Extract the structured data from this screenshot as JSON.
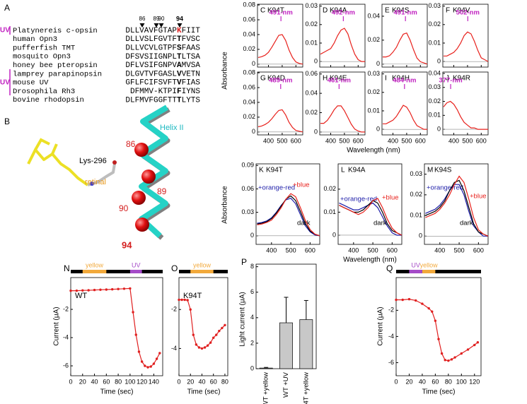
{
  "alignment": {
    "panel": "A",
    "positions": [
      "86",
      "89",
      "90",
      "94"
    ],
    "groups": [
      "UV",
      "UV"
    ],
    "rows": [
      {
        "name": "Platynereis c-opsin",
        "pre": "DLLVAVFGTAP",
        "site": "K",
        "post": "FIIT"
      },
      {
        "name": "human Opn3",
        "pre": "DLLVSLFGVTF",
        "site": "T",
        "post": "FVSC"
      },
      {
        "name": "pufferfish TMT",
        "pre": "DLLVCVLGTPF",
        "site": "S",
        "post": "FAAS"
      },
      {
        "name": "mosquito Opn3",
        "pre": "DFSVSIIGNPL",
        "site": "T",
        "post": "LTSA"
      },
      {
        "name": "honey bee pteropsin",
        "pre": "DFLVSIFGNPV",
        "site": "A",
        "post": "MVSA"
      },
      {
        "name": "lamprey parapinopsin",
        "pre": "DLGVTVFGASL",
        "site": "V",
        "post": "VETN"
      },
      {
        "name": "mouse UV",
        "pre": "GFLFCIFSVFT",
        "site": "V",
        "post": "FIAS"
      },
      {
        "name": "Drosophila Rh3",
        "pre": "DFMMV-KTPI",
        "site": "F",
        "post": "IYNS"
      },
      {
        "name": "bovine rhodopsin",
        "pre": "DLFMVFGGFTT",
        "site": "T",
        "post": "LYTS"
      }
    ]
  },
  "structure": {
    "panel": "B",
    "helix": "Helix II",
    "lysine": "Lys-296",
    "chromophore": "retinal",
    "residues": [
      "86",
      "89",
      "90",
      "94"
    ]
  },
  "chart_data": [
    {
      "type": "line",
      "panel": "C",
      "title": "K94T",
      "ylabel": "Absorbance",
      "x": [
        325,
        350,
        375,
        400,
        425,
        450,
        475,
        500,
        525,
        550,
        575,
        600,
        625,
        650
      ],
      "values": [
        0.009,
        0.01,
        0.012,
        0.016,
        0.023,
        0.031,
        0.039,
        0.04,
        0.032,
        0.019,
        0.009,
        0.003,
        0.001,
        0.0
      ],
      "color": "#e8211c",
      "xlim": [
        320,
        650
      ],
      "xticks": [
        400,
        500,
        600
      ],
      "ylim": [
        -0.004,
        0.081
      ],
      "yticks": [
        0,
        0.02,
        0.04,
        0.06,
        0.08
      ],
      "annotation": {
        "value": 491,
        "label": "491-nm"
      },
      "zero_line": true
    },
    {
      "type": "line",
      "panel": "D",
      "title": "K94A",
      "x": [
        325,
        350,
        375,
        400,
        425,
        450,
        475,
        500,
        525,
        550,
        575,
        600,
        625,
        650
      ],
      "values": [
        0.004,
        0.005,
        0.006,
        0.007,
        0.01,
        0.014,
        0.017,
        0.018,
        0.015,
        0.009,
        0.004,
        0.001,
        0.0,
        0.0
      ],
      "color": "#e8211c",
      "xlim": [
        320,
        650
      ],
      "xticks": [
        400,
        500,
        600
      ],
      "ylim": [
        -0.003,
        0.031
      ],
      "yticks": [
        0,
        0.01,
        0.02,
        0.03
      ],
      "annotation": {
        "value": 492,
        "label": "492-nm"
      },
      "zero_line": true
    },
    {
      "type": "line",
      "panel": "E",
      "title": "K94S",
      "x": [
        325,
        350,
        375,
        400,
        425,
        450,
        475,
        500,
        525,
        550,
        575,
        600,
        625,
        650
      ],
      "values": [
        0.006,
        0.006,
        0.007,
        0.01,
        0.014,
        0.02,
        0.025,
        0.026,
        0.02,
        0.012,
        0.005,
        0.002,
        0.001,
        0.0
      ],
      "color": "#e8211c",
      "xlim": [
        320,
        650
      ],
      "xticks": [
        400,
        500,
        600
      ],
      "ylim": [
        -0.0025,
        0.05
      ],
      "yticks": [
        0,
        0.02,
        0.04
      ],
      "annotation": {
        "value": 491,
        "label": "491-nm"
      },
      "zero_line": true
    },
    {
      "type": "line",
      "panel": "F",
      "title": "K94V",
      "x": [
        325,
        350,
        375,
        400,
        425,
        450,
        475,
        500,
        525,
        550,
        575,
        600,
        625,
        650
      ],
      "values": [
        0.003,
        0.003,
        0.004,
        0.005,
        0.007,
        0.01,
        0.014,
        0.016,
        0.015,
        0.011,
        0.006,
        0.002,
        0.001,
        0.0
      ],
      "color": "#e8211c",
      "xlim": [
        320,
        650
      ],
      "xticks": [
        400,
        500,
        600
      ],
      "ylim": [
        -0.003,
        0.031
      ],
      "yticks": [
        0,
        0.01,
        0.02,
        0.03
      ],
      "annotation": {
        "value": 502,
        "label": "502-nm"
      },
      "zero_line": true
    },
    {
      "type": "line",
      "panel": "G",
      "title": "K94D",
      "x": [
        325,
        350,
        375,
        400,
        425,
        450,
        475,
        500,
        525,
        550,
        575,
        600,
        625,
        650
      ],
      "values": [
        0.007,
        0.008,
        0.01,
        0.013,
        0.018,
        0.024,
        0.029,
        0.03,
        0.023,
        0.013,
        0.006,
        0.002,
        0.001,
        0.0
      ],
      "color": "#e8211c",
      "xlim": [
        320,
        650
      ],
      "xticks": [
        400,
        500,
        600
      ],
      "ylim": [
        -0.004,
        0.081
      ],
      "yticks": [
        0,
        0.02,
        0.04,
        0.06,
        0.08
      ],
      "annotation": {
        "value": 489,
        "label": "489-nm"
      },
      "zero_line": true
    },
    {
      "type": "line",
      "panel": "H",
      "title": "K94E",
      "xlabel": "Wavelength (nm)",
      "x": [
        325,
        350,
        375,
        400,
        425,
        450,
        475,
        500,
        525,
        550,
        575,
        600,
        625,
        650
      ],
      "values": [
        0.009,
        0.009,
        0.012,
        0.017,
        0.023,
        0.027,
        0.027,
        0.022,
        0.015,
        0.008,
        0.003,
        0.001,
        0.0,
        0.0
      ],
      "color": "#e8211c",
      "xlim": [
        320,
        650
      ],
      "xticks": [
        400,
        500,
        600
      ],
      "ylim": [
        -0.003,
        0.062
      ],
      "yticks": [
        0,
        0.02,
        0.04,
        0.06
      ],
      "annotation": {
        "value": 461,
        "label": "461-nm"
      },
      "zero_line": true
    },
    {
      "type": "line",
      "panel": "I",
      "title": "K94H",
      "x": [
        325,
        350,
        375,
        400,
        425,
        450,
        475,
        500,
        525,
        550,
        575,
        600,
        625,
        650
      ],
      "values": [
        0.003,
        0.003,
        0.004,
        0.005,
        0.007,
        0.01,
        0.013,
        0.012,
        0.009,
        0.005,
        0.002,
        0.001,
        0.0,
        0.0
      ],
      "color": "#e8211c",
      "xlim": [
        320,
        650
      ],
      "xticks": [
        400,
        500,
        600
      ],
      "ylim": [
        -0.003,
        0.031
      ],
      "yticks": [
        0,
        0.01,
        0.02,
        0.03
      ],
      "annotation": {
        "value": 484,
        "label": "484-nm"
      },
      "zero_line": true
    },
    {
      "type": "line",
      "panel": "J",
      "title": "K94R",
      "x": [
        325,
        350,
        375,
        400,
        425,
        450,
        475,
        500,
        525,
        550,
        575,
        600,
        625,
        650
      ],
      "values": [
        0.016,
        0.019,
        0.02,
        0.018,
        0.014,
        0.009,
        0.005,
        0.003,
        0.001,
        0.001,
        0.0,
        0.0,
        0.0,
        0.0
      ],
      "color": "#e8211c",
      "xlim": [
        320,
        650
      ],
      "xticks": [
        400,
        500,
        600
      ],
      "ylim": [
        -0.004,
        0.041
      ],
      "yticks": [
        0,
        0.01,
        0.02,
        0.03,
        0.04
      ],
      "annotation": {
        "value": 377,
        "label": "377-nm"
      },
      "zero_line": true
    },
    {
      "type": "line",
      "panel": "K",
      "title": "K94T",
      "ylabel": "Absorbance",
      "x": [
        325,
        350,
        375,
        400,
        425,
        450,
        475,
        500,
        525,
        550,
        575,
        600,
        625,
        650
      ],
      "series": [
        {
          "name": "+orange-red",
          "color": "#1c1ca8",
          "values": [
            0.016,
            0.017,
            0.019,
            0.023,
            0.03,
            0.039,
            0.046,
            0.048,
            0.041,
            0.027,
            0.013,
            0.005,
            0.001,
            0.0
          ]
        },
        {
          "name": "dark",
          "color": "#000000",
          "values": [
            0.015,
            0.016,
            0.018,
            0.022,
            0.029,
            0.038,
            0.047,
            0.051,
            0.045,
            0.031,
            0.016,
            0.006,
            0.002,
            0.0
          ]
        },
        {
          "name": "+blue",
          "color": "#e8211c",
          "values": [
            0.014,
            0.015,
            0.017,
            0.02,
            0.027,
            0.036,
            0.047,
            0.054,
            0.05,
            0.036,
            0.02,
            0.008,
            0.002,
            0.0
          ]
        }
      ],
      "xlim": [
        320,
        650
      ],
      "xticks": [
        400,
        500,
        600
      ],
      "ylim": [
        -0.011,
        0.092
      ],
      "yticks": [
        0,
        0.03,
        0.06,
        0.09
      ],
      "zero_line": true
    },
    {
      "type": "line",
      "panel": "L",
      "title": "K94A",
      "xlabel": "Wavelength (nm)",
      "x": [
        325,
        350,
        375,
        400,
        425,
        450,
        475,
        500,
        525,
        550,
        575,
        600,
        625,
        650
      ],
      "series": [
        {
          "name": "+orange-red",
          "color": "#1c1ca8",
          "values": [
            0.014,
            0.013,
            0.012,
            0.011,
            0.011,
            0.012,
            0.013,
            0.014,
            0.012,
            0.008,
            0.004,
            0.001,
            0.0,
            0.0
          ]
        },
        {
          "name": "dark",
          "color": "#000000",
          "values": [
            0.013,
            0.012,
            0.011,
            0.01,
            0.01,
            0.011,
            0.013,
            0.015,
            0.014,
            0.01,
            0.005,
            0.002,
            0.001,
            0.0
          ]
        },
        {
          "name": "+blue",
          "color": "#e8211c",
          "values": [
            0.013,
            0.012,
            0.011,
            0.01,
            0.009,
            0.01,
            0.012,
            0.015,
            0.016,
            0.012,
            0.007,
            0.003,
            0.001,
            0.0
          ]
        }
      ],
      "xlim": [
        320,
        650
      ],
      "xticks": [
        400,
        500,
        600
      ],
      "ylim": [
        -0.004,
        0.031
      ],
      "yticks": [
        0,
        0.01,
        0.02
      ],
      "zero_line": true
    },
    {
      "type": "line",
      "panel": "M",
      "title": "K94S",
      "x": [
        325,
        350,
        375,
        400,
        425,
        450,
        475,
        500,
        525,
        550,
        575,
        600,
        625,
        650
      ],
      "series": [
        {
          "name": "+orange-red",
          "color": "#1c1ca8",
          "values": [
            0.011,
            0.012,
            0.013,
            0.015,
            0.018,
            0.022,
            0.025,
            0.025,
            0.02,
            0.012,
            0.005,
            0.002,
            0.0,
            0.0
          ]
        },
        {
          "name": "dark",
          "color": "#000000",
          "values": [
            0.01,
            0.011,
            0.012,
            0.014,
            0.017,
            0.022,
            0.026,
            0.027,
            0.022,
            0.014,
            0.006,
            0.002,
            0.001,
            0.0
          ]
        },
        {
          "name": "+blue",
          "color": "#e8211c",
          "values": [
            0.009,
            0.01,
            0.011,
            0.013,
            0.016,
            0.02,
            0.025,
            0.029,
            0.026,
            0.018,
            0.009,
            0.003,
            0.001,
            0.0
          ]
        }
      ],
      "xlim": [
        320,
        650
      ],
      "xticks": [
        400,
        500,
        600
      ],
      "ylim": [
        -0.004,
        0.035
      ],
      "yticks": [
        0,
        0.01,
        0.02,
        0.03
      ],
      "zero_line": true
    },
    {
      "type": "line",
      "panel": "N",
      "title": "WT",
      "ylabel": "Current (μA)",
      "xlabel": "Time (sec)",
      "marker": true,
      "x": [
        0,
        10,
        20,
        30,
        40,
        50,
        60,
        70,
        80,
        90,
        100,
        105,
        110,
        115,
        120,
        125,
        130,
        135,
        140,
        145,
        150
      ],
      "values": [
        -0.68,
        -0.68,
        -0.66,
        -0.65,
        -0.63,
        -0.61,
        -0.6,
        -0.58,
        -0.56,
        -0.54,
        -0.52,
        -2.2,
        -3.8,
        -5.0,
        -5.7,
        -6.0,
        -6.1,
        -6.05,
        -5.85,
        -5.5,
        -5.1
      ],
      "color": "#e02020",
      "xlim": [
        0,
        155
      ],
      "xticks": [
        0,
        20,
        40,
        60,
        80,
        100,
        120,
        140
      ],
      "ylim": [
        -6.7,
        0.25
      ],
      "yticks": [
        -6,
        -4,
        -2
      ],
      "stimulus": [
        {
          "label": "yellow",
          "start": 20,
          "end": 60,
          "color": "#f2a93b"
        },
        {
          "label": "UV",
          "start": 100,
          "end": 120,
          "color": "#a54bc8"
        }
      ]
    },
    {
      "type": "line",
      "panel": "O",
      "title": "K94T",
      "xlabel": "Time (sec)",
      "marker": true,
      "x": [
        0,
        5,
        10,
        15,
        20,
        25,
        30,
        35,
        40,
        45,
        50,
        55,
        60,
        65,
        70,
        75,
        80
      ],
      "values": [
        -1.5,
        -1.5,
        -1.5,
        -1.52,
        -2.0,
        -3.3,
        -3.8,
        -3.95,
        -4.0,
        -3.95,
        -3.85,
        -3.7,
        -3.45,
        -3.3,
        -3.1,
        -2.95,
        -2.8
      ],
      "color": "#e02020",
      "xlim": [
        0,
        85
      ],
      "xticks": [
        0,
        20,
        40,
        60,
        80
      ],
      "ylim": [
        -5.4,
        -0.36
      ],
      "yticks": [
        -4,
        -2
      ],
      "stimulus": [
        {
          "label": "yellow",
          "start": 20,
          "end": 60,
          "color": "#f2a93b"
        }
      ]
    },
    {
      "type": "bar",
      "panel": "P",
      "ylabel": "Light current (μA)",
      "categories": [
        "WT +yellow",
        "WT +UV",
        "K94T +yellow"
      ],
      "values": [
        0.05,
        3.6,
        3.85
      ],
      "errors": [
        0.05,
        2.0,
        1.5
      ],
      "color": "#c8c8c8",
      "ylim": [
        0,
        8.2
      ],
      "yticks": [
        0,
        2,
        4,
        6,
        8
      ]
    },
    {
      "type": "line",
      "panel": "Q",
      "ylabel": "Current (μA)",
      "xlabel": "Time (sec)",
      "marker": true,
      "x": [
        0,
        10,
        20,
        30,
        40,
        50,
        55,
        60,
        65,
        70,
        75,
        80,
        85,
        90,
        100,
        110,
        120,
        125
      ],
      "values": [
        -1.2,
        -1.2,
        -1.15,
        -1.25,
        -1.5,
        -1.85,
        -2.1,
        -2.8,
        -4.2,
        -5.3,
        -5.8,
        -5.85,
        -5.75,
        -5.6,
        -5.3,
        -5.0,
        -4.65,
        -4.45
      ],
      "color": "#e02020",
      "xlim": [
        0,
        130
      ],
      "xticks": [
        0,
        20,
        40,
        60,
        80,
        100,
        120
      ],
      "ylim": [
        -7,
        0.5
      ],
      "yticks": [
        -6,
        -4,
        -2
      ],
      "stimulus": [
        {
          "label": "UV",
          "start": 20,
          "end": 40,
          "color": "#a54bc8"
        },
        {
          "label": "yellow",
          "start": 40,
          "end": 60,
          "color": "#f2a93b"
        }
      ]
    }
  ]
}
